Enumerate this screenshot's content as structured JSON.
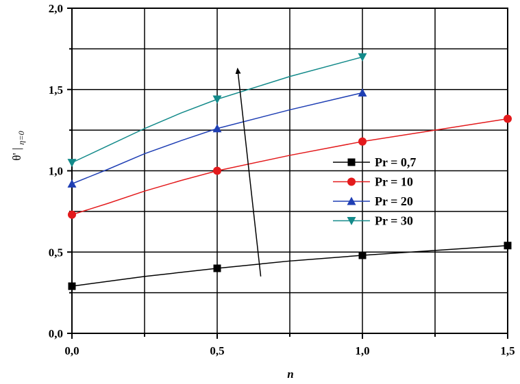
{
  "chart_data": {
    "type": "line",
    "xlabel": "n",
    "ylabel_main": "θ'",
    "ylabel_sub": "η=0",
    "xlim": [
      0,
      1.5
    ],
    "ylim": [
      0,
      2.0
    ],
    "x_ticks": [
      0,
      0.5,
      1.0,
      1.5
    ],
    "x_tick_labels": [
      "0,0",
      "0,5",
      "1,0",
      "1,5"
    ],
    "y_ticks": [
      0,
      0.5,
      1.0,
      1.5,
      2.0
    ],
    "y_tick_labels": [
      "0,0",
      "0,5",
      "1,0",
      "1,5",
      "2,0"
    ],
    "grid": true,
    "legend_position": "right-middle",
    "series": [
      {
        "name": "Pr = 0,7",
        "color": "#000000",
        "marker": "square",
        "x": [
          0,
          0.5,
          1.0,
          1.5
        ],
        "y": [
          0.29,
          0.4,
          0.48,
          0.54
        ],
        "curve_x": [
          0,
          0.25,
          0.5,
          0.75,
          1.0,
          1.25,
          1.5
        ],
        "curve_y": [
          0.29,
          0.35,
          0.4,
          0.445,
          0.48,
          0.51,
          0.54
        ]
      },
      {
        "name": "Pr = 10",
        "color": "#e31a1c",
        "marker": "circle",
        "x": [
          0,
          0.5,
          1.0,
          1.5
        ],
        "y": [
          0.73,
          1.0,
          1.18,
          1.32
        ],
        "curve_x": [
          0,
          0.125,
          0.25,
          0.375,
          0.5,
          0.75,
          1.0,
          1.25,
          1.5
        ],
        "curve_y": [
          0.73,
          0.8,
          0.875,
          0.94,
          1.0,
          1.095,
          1.18,
          1.25,
          1.32
        ]
      },
      {
        "name": "Pr = 20",
        "color": "#1f3fb4",
        "marker": "triangle-up",
        "x": [
          0,
          0.5,
          1.0
        ],
        "y": [
          0.92,
          1.26,
          1.48
        ],
        "curve_x": [
          0,
          0.125,
          0.25,
          0.375,
          0.5,
          0.75,
          1.0
        ],
        "curve_y": [
          0.92,
          1.01,
          1.105,
          1.185,
          1.26,
          1.375,
          1.48
        ]
      },
      {
        "name": "Pr = 30",
        "color": "#138a8a",
        "marker": "triangle-down",
        "x": [
          0,
          0.5,
          1.0
        ],
        "y": [
          1.05,
          1.44,
          1.7
        ],
        "curve_x": [
          0,
          0.125,
          0.25,
          0.375,
          0.5,
          0.75,
          1.0
        ],
        "curve_y": [
          1.05,
          1.155,
          1.26,
          1.355,
          1.44,
          1.58,
          1.7
        ]
      }
    ],
    "annotation": {
      "type": "arrow",
      "from": [
        0.65,
        0.35
      ],
      "to": [
        0.57,
        1.63
      ]
    }
  }
}
